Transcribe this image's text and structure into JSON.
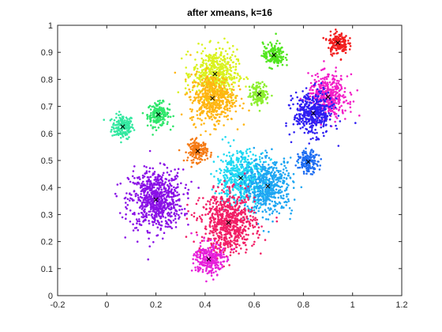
{
  "chart_data": {
    "type": "scatter",
    "title": "after xmeans, k=16",
    "xlabel": "",
    "ylabel": "",
    "xlim": [
      -0.2,
      1.2
    ],
    "ylim": [
      0,
      1
    ],
    "xticks": [
      -0.2,
      0,
      0.2,
      0.4,
      0.6,
      0.8,
      1,
      1.2
    ],
    "yticks": [
      0,
      0.1,
      0.2,
      0.3,
      0.4,
      0.5,
      0.6,
      0.7,
      0.8,
      0.9,
      1
    ],
    "xtick_labels": [
      "-0.2",
      "0",
      "0.2",
      "0.4",
      "0.6",
      "0.8",
      "1",
      "1.2"
    ],
    "ytick_labels": [
      "0",
      "0.1",
      "0.2",
      "0.3",
      "0.4",
      "0.5",
      "0.6",
      "0.7",
      "0.8",
      "0.9",
      "1"
    ],
    "grid": false,
    "legend": "none",
    "marker": "dot",
    "centroid_marker": "x",
    "clusters": [
      {
        "centroid": [
          0.065,
          0.625
        ],
        "spread": 0.022,
        "points": 180,
        "color": "#33e8a0"
      },
      {
        "centroid": [
          0.21,
          0.67
        ],
        "spread": 0.022,
        "points": 180,
        "color": "#2ee66b"
      },
      {
        "centroid": [
          0.2,
          0.355
        ],
        "spread": 0.055,
        "points": 700,
        "color": "#8a10e6"
      },
      {
        "centroid": [
          0.37,
          0.535
        ],
        "spread": 0.02,
        "points": 160,
        "color": "#f57a14"
      },
      {
        "centroid": [
          0.44,
          0.82
        ],
        "spread": 0.045,
        "points": 500,
        "color": "#d9f21f"
      },
      {
        "centroid": [
          0.43,
          0.73
        ],
        "spread": 0.045,
        "points": 500,
        "color": "#ffb512"
      },
      {
        "centroid": [
          0.68,
          0.89
        ],
        "spread": 0.022,
        "points": 170,
        "color": "#52e61f"
      },
      {
        "centroid": [
          0.62,
          0.745
        ],
        "spread": 0.02,
        "points": 140,
        "color": "#8cef2e"
      },
      {
        "centroid": [
          0.94,
          0.935
        ],
        "spread": 0.02,
        "points": 160,
        "color": "#f21f1f"
      },
      {
        "centroid": [
          0.9,
          0.735
        ],
        "spread": 0.04,
        "points": 420,
        "color": "#f21fc8"
      },
      {
        "centroid": [
          0.84,
          0.675
        ],
        "spread": 0.04,
        "points": 420,
        "color": "#2f1ff2"
      },
      {
        "centroid": [
          0.82,
          0.495
        ],
        "spread": 0.02,
        "points": 150,
        "color": "#1f6ef2"
      },
      {
        "centroid": [
          0.545,
          0.435
        ],
        "spread": 0.05,
        "points": 520,
        "color": "#1fd9f2"
      },
      {
        "centroid": [
          0.655,
          0.405
        ],
        "spread": 0.05,
        "points": 520,
        "color": "#1fa6f2"
      },
      {
        "centroid": [
          0.495,
          0.27
        ],
        "spread": 0.055,
        "points": 700,
        "color": "#f21f66"
      },
      {
        "centroid": [
          0.415,
          0.135
        ],
        "spread": 0.03,
        "points": 260,
        "color": "#e61fd9"
      }
    ]
  }
}
